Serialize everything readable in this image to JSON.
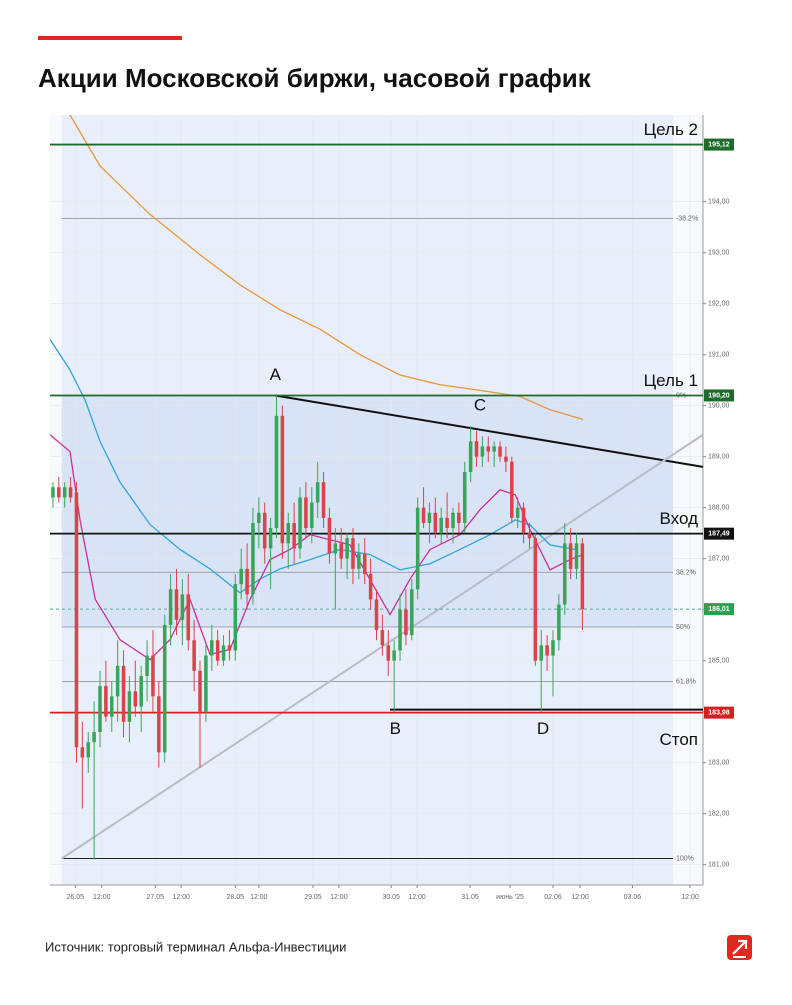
{
  "chart_data": {
    "type": "candlestick",
    "title": "Акции Московской биржи,  часовой график",
    "x": [
      0,
      1,
      2,
      3,
      4,
      5,
      6,
      7,
      8,
      9,
      10,
      11,
      12,
      13,
      14,
      15,
      16,
      17,
      18,
      19,
      20,
      21,
      22,
      23,
      24,
      25,
      26,
      27,
      28,
      29,
      30,
      31,
      32,
      33,
      34,
      35,
      36,
      37,
      38,
      39,
      40,
      41,
      42,
      43,
      44,
      45,
      46,
      47,
      48,
      49,
      50,
      51,
      52,
      53,
      54,
      55,
      56,
      57,
      58,
      59,
      60,
      61,
      62,
      63,
      64,
      65,
      66,
      67,
      68,
      69,
      70,
      71,
      72,
      73,
      74,
      75,
      76,
      77,
      78,
      79,
      80,
      81,
      82,
      83,
      84,
      85,
      86,
      87,
      88,
      89,
      90
    ],
    "open": [
      188.2,
      188.4,
      188.2,
      188.4,
      188.3,
      183.3,
      183.1,
      183.4,
      183.6,
      184.5,
      183.9,
      184.3,
      184.9,
      183.8,
      184.4,
      184.1,
      184.7,
      185.1,
      184.3,
      183.2,
      185.7,
      186.4,
      185.8,
      186.3,
      185.4,
      184.8,
      184.0,
      185.1,
      185.4,
      185.0,
      185.3,
      185.2,
      186.5,
      186.8,
      186.3,
      187.7,
      187.9,
      187.2,
      187.6,
      189.8,
      187.3,
      187.7,
      187.2,
      188.2,
      187.6,
      188.1,
      188.5,
      187.8,
      187.1,
      187.3,
      187.0,
      187.4,
      186.8,
      187.1,
      186.7,
      186.2,
      185.6,
      185.3,
      185.0,
      185.2,
      186.0,
      185.5,
      186.4,
      188.0,
      187.7,
      187.9,
      187.5,
      187.8,
      187.6,
      187.9,
      187.7,
      188.7,
      189.3,
      189.0,
      189.2,
      189.1,
      189.2,
      189.0,
      188.9,
      187.8,
      188.0,
      187.5,
      187.4,
      185.0,
      185.3,
      185.1,
      185.4,
      186.1,
      187.3,
      186.8,
      187.3
    ],
    "high": [
      188.5,
      188.6,
      188.5,
      188.6,
      188.5,
      183.8,
      183.6,
      184.2,
      184.8,
      185.0,
      184.6,
      185.4,
      185.2,
      184.7,
      185.0,
      184.9,
      185.4,
      185.6,
      184.6,
      185.9,
      186.7,
      186.8,
      186.6,
      186.7,
      185.8,
      185.0,
      185.3,
      185.7,
      185.6,
      185.5,
      185.6,
      186.7,
      187.2,
      187.3,
      188.0,
      188.2,
      188.1,
      187.8,
      190.2,
      190.0,
      187.9,
      188.1,
      188.4,
      188.5,
      188.4,
      188.9,
      188.7,
      188.0,
      187.6,
      187.6,
      187.5,
      187.6,
      187.3,
      187.4,
      187.0,
      186.4,
      185.9,
      185.6,
      185.4,
      186.3,
      186.4,
      186.6,
      188.2,
      188.4,
      188.1,
      188.2,
      188.0,
      188.3,
      188.0,
      188.1,
      188.9,
      189.6,
      189.5,
      189.4,
      189.4,
      189.3,
      189.3,
      189.2,
      189.0,
      188.2,
      188.1,
      187.7,
      187.5,
      185.6,
      185.5,
      185.6,
      186.3,
      187.7,
      187.6,
      187.5,
      187.4
    ],
    "low": [
      188.0,
      188.1,
      188.0,
      188.1,
      183.0,
      182.1,
      182.8,
      181.1,
      183.3,
      183.8,
      183.6,
      183.8,
      183.5,
      183.4,
      183.9,
      183.6,
      184.2,
      184.0,
      182.9,
      183.0,
      185.3,
      185.5,
      185.3,
      185.2,
      184.4,
      182.9,
      183.8,
      184.8,
      184.9,
      184.9,
      185.0,
      185.0,
      186.2,
      186.0,
      186.1,
      187.2,
      186.9,
      186.4,
      187.4,
      187.0,
      186.8,
      186.9,
      187.0,
      187.4,
      187.3,
      187.8,
      187.6,
      186.9,
      186.0,
      186.8,
      186.6,
      186.5,
      186.6,
      186.5,
      186.0,
      185.4,
      185.1,
      184.7,
      184.0,
      185.0,
      185.3,
      185.4,
      186.2,
      187.6,
      187.3,
      187.4,
      187.3,
      187.4,
      187.3,
      187.5,
      187.5,
      188.5,
      188.8,
      188.8,
      188.9,
      188.8,
      188.9,
      188.7,
      187.7,
      187.6,
      187.3,
      187.2,
      184.9,
      184.0,
      184.8,
      184.3,
      185.2,
      185.9,
      186.6,
      186.6,
      185.6
    ],
    "close": [
      188.4,
      188.2,
      188.4,
      188.2,
      183.3,
      183.1,
      183.4,
      183.6,
      184.5,
      183.9,
      184.3,
      184.9,
      183.8,
      184.4,
      184.1,
      184.7,
      185.1,
      184.3,
      183.2,
      185.7,
      186.4,
      185.8,
      186.3,
      185.4,
      184.8,
      184.0,
      185.1,
      185.4,
      185.0,
      185.3,
      185.2,
      186.5,
      186.8,
      186.3,
      187.7,
      187.9,
      187.2,
      187.6,
      189.8,
      187.3,
      187.7,
      187.2,
      188.2,
      187.6,
      188.1,
      188.5,
      187.8,
      187.1,
      187.3,
      187.0,
      187.4,
      186.8,
      187.1,
      186.7,
      186.2,
      185.6,
      185.3,
      185.0,
      185.2,
      186.0,
      185.5,
      186.4,
      188.0,
      187.7,
      187.9,
      187.5,
      187.8,
      187.6,
      187.9,
      187.7,
      188.7,
      189.3,
      189.0,
      189.2,
      189.1,
      189.2,
      189.0,
      188.9,
      187.8,
      188.0,
      187.5,
      187.4,
      185.0,
      185.3,
      185.1,
      185.4,
      186.1,
      187.3,
      186.8,
      187.3,
      186.01
    ],
    "up_color": "#3aa55a",
    "down_color": "#d9434a",
    "overlays": [
      {
        "color": "#e8963c",
        "x": [
          2.9,
          8.0,
          16.5,
          25.0,
          31.8,
          38.6,
          45.4,
          52.2,
          59.0,
          65.8,
          72.6,
          79.4,
          84.5,
          90.1
        ],
        "values": [
          195.7,
          194.7,
          193.75,
          192.96,
          192.37,
          191.88,
          191.5,
          191.0,
          190.6,
          190.41,
          190.3,
          190.18,
          189.92,
          189.73
        ]
      },
      {
        "color": "#2ea6dc",
        "x": [
          -0.5,
          2.9,
          5.5,
          8.0,
          11.4,
          16.5,
          21.6,
          26.7,
          31.8,
          35.2,
          38.6,
          43.7,
          48.8,
          53.9,
          59.0,
          64.1,
          69.2,
          74.3,
          78.6,
          81.1,
          84.5,
          88.8
        ],
        "values": [
          191.3,
          190.7,
          190.1,
          189.3,
          188.5,
          187.67,
          187.18,
          186.8,
          186.33,
          186.6,
          186.8,
          186.98,
          187.18,
          187.08,
          186.78,
          186.9,
          187.18,
          187.47,
          187.76,
          187.66,
          187.27,
          187.18
        ]
      },
      {
        "color": "#c8309a",
        "x": [
          -0.5,
          2.9,
          4.6,
          7.2,
          11.4,
          16.5,
          19.9,
          23.3,
          26.7,
          30.1,
          33.5,
          36.9,
          40.3,
          43.7,
          47.1,
          50.5,
          53.9,
          57.3,
          60.7,
          64.1,
          69.2,
          72.6,
          76.0,
          78.6,
          81.1,
          84.5,
          87.9,
          90.1
        ],
        "values": [
          189.43,
          189.1,
          187.76,
          186.2,
          185.41,
          185.02,
          185.41,
          186.2,
          185.12,
          185.22,
          186.2,
          186.98,
          187.18,
          187.47,
          187.37,
          187.27,
          186.59,
          185.9,
          186.6,
          187.18,
          187.47,
          187.96,
          188.35,
          188.25,
          187.57,
          186.78,
          186.98,
          187.08
        ]
      }
    ],
    "trend_lines": [
      {
        "color": "#111111",
        "x": [
          37.8,
          110.5
        ],
        "values": [
          190.2,
          188.8
        ]
      },
      {
        "color": "#b8bcc6",
        "x": [
          1.5,
          110.5
        ],
        "values": [
          181.12,
          189.43
        ]
      },
      {
        "color": "#111111",
        "x": [
          57.3,
          110.5
        ],
        "values": [
          184.04,
          184.04
        ]
      }
    ],
    "annotations": [
      {
        "label": "A",
        "x": 37.8,
        "y": 190.2
      },
      {
        "label": "C",
        "x": 72.6,
        "y": 189.6
      },
      {
        "label": "B",
        "x": 58.2,
        "y": 184.0
      },
      {
        "label": "D",
        "x": 83.3,
        "y": 184.0
      }
    ],
    "fib_xlim": [
      1.5,
      105.4
    ],
    "fib_levels": [
      {
        "value": 193.67,
        "label": "-38.2%",
        "color": "#a0a3aa"
      },
      {
        "value": 190.2,
        "label": "0%",
        "color": "#a0a3aa"
      },
      {
        "value": 186.73,
        "label": "38.2%",
        "color": "#a0a3aa"
      },
      {
        "value": 185.66,
        "label": "50%",
        "color": "#a0a3aa"
      },
      {
        "value": 184.59,
        "label": "61.8%",
        "color": "#a0a3aa"
      },
      {
        "value": 181.12,
        "label": "100%",
        "color": "#222222"
      }
    ],
    "levels": [
      {
        "name": "Цель 2",
        "value": 195.12,
        "label": "195,12",
        "color": "#1f6b2b"
      },
      {
        "name": "Цель 1",
        "value": 190.2,
        "label": "190,20",
        "color": "#1f6b2b"
      },
      {
        "name": "Вход",
        "value": 187.49,
        "label": "187,49",
        "color": "#111111"
      },
      {
        "value": 186.01,
        "label": "186,01",
        "color": "#2e9e4f"
      },
      {
        "name": "Стоп",
        "value": 183.98,
        "label": "183,98",
        "color": "#d42020"
      }
    ],
    "xlim": [
      -0.5,
      110.5
    ],
    "ylim": [
      180.6,
      195.7
    ],
    "yticks": [
      {
        "value": 181,
        "label": "181,00"
      },
      {
        "value": 182,
        "label": "182,00"
      },
      {
        "value": 183,
        "label": "183,00"
      },
      {
        "value": 184,
        "label": "184,00"
      },
      {
        "value": 185,
        "label": "185,00"
      },
      {
        "value": 186,
        "label": "186,00"
      },
      {
        "value": 187,
        "label": "187,00"
      },
      {
        "value": 188,
        "label": "188,00"
      },
      {
        "value": 189,
        "label": "189,00"
      },
      {
        "value": 190,
        "label": "190,00"
      },
      {
        "value": 191,
        "label": "191,00"
      },
      {
        "value": 192,
        "label": "192,00"
      },
      {
        "value": 193,
        "label": "193,00"
      },
      {
        "value": 194,
        "label": "194,00"
      }
    ],
    "xticks": [
      {
        "value": 3.8,
        "label": "26.05"
      },
      {
        "value": 8.3,
        "label": "12:00"
      },
      {
        "value": 17.4,
        "label": "27.05"
      },
      {
        "value": 21.8,
        "label": "12:00"
      },
      {
        "value": 31.0,
        "label": "28.05"
      },
      {
        "value": 35.0,
        "label": "12:00"
      },
      {
        "value": 44.2,
        "label": "29.05"
      },
      {
        "value": 48.6,
        "label": "12:00"
      },
      {
        "value": 57.5,
        "label": "30.05"
      },
      {
        "value": 61.9,
        "label": "12:00"
      },
      {
        "value": 70.9,
        "label": "31.05"
      },
      {
        "value": 77.7,
        "label": "июнь '25"
      },
      {
        "value": 85.0,
        "label": "02.06"
      },
      {
        "value": 89.6,
        "label": "12:00"
      },
      {
        "value": 98.5,
        "label": "03.06"
      },
      {
        "value": 108.3,
        "label": "12:00"
      }
    ],
    "grid": true
  },
  "source": "Источник: торговый терминал Альфа-Инвестиции"
}
